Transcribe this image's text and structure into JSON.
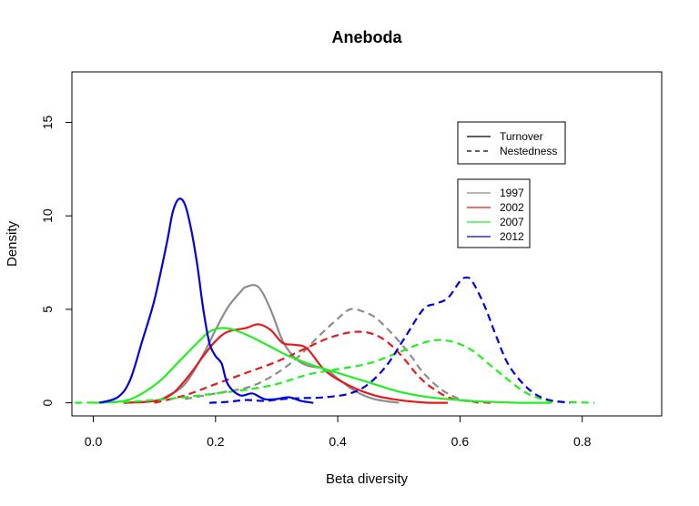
{
  "chart_data": {
    "type": "line",
    "title": "Aneboda",
    "xlabel": "Beta diversity",
    "ylabel": "Density",
    "xlim": [
      -0.035,
      0.93
    ],
    "ylim": [
      -0.7,
      17.7
    ],
    "xticks": [
      0.0,
      0.2,
      0.4,
      0.6,
      0.8
    ],
    "xtick_labels": [
      "0.0",
      "0.2",
      "0.4",
      "0.6",
      "0.8"
    ],
    "yticks": [
      0,
      5,
      10,
      15
    ],
    "ytick_labels": [
      "0",
      "5",
      "10",
      "15"
    ],
    "grid": false,
    "legend_linetype": {
      "position": "top-right",
      "entries": [
        {
          "label": "Turnover",
          "style": "solid",
          "color": "#000000"
        },
        {
          "label": "Nestedness",
          "style": "dashed",
          "color": "#000000"
        }
      ]
    },
    "legend_year": {
      "position": "right",
      "entries": [
        {
          "label": "1997",
          "color": "#8c8c8c"
        },
        {
          "label": "2002",
          "color": "#e31a1c"
        },
        {
          "label": "2007",
          "color": "#22ee22"
        },
        {
          "label": "2012",
          "color": "#0000dd"
        }
      ]
    },
    "series": [
      {
        "group": "1997",
        "component": "Turnover",
        "color": "#8c8c8c",
        "dash": false,
        "x": [
          0.05,
          0.1,
          0.12,
          0.15,
          0.18,
          0.2,
          0.22,
          0.24,
          0.25,
          0.27,
          0.29,
          0.31,
          0.33,
          0.35,
          0.38,
          0.4,
          0.43,
          0.46,
          0.5
        ],
        "y": [
          0.0,
          0.1,
          0.35,
          1.0,
          2.6,
          3.9,
          5.1,
          5.9,
          6.2,
          6.2,
          5.0,
          3.3,
          2.4,
          2.0,
          1.8,
          1.3,
          0.6,
          0.2,
          0.0
        ]
      },
      {
        "group": "1997",
        "component": "Nestedness",
        "color": "#8c8c8c",
        "dash": true,
        "x": [
          0.15,
          0.2,
          0.25,
          0.28,
          0.31,
          0.34,
          0.37,
          0.4,
          0.42,
          0.44,
          0.46,
          0.48,
          0.5,
          0.52,
          0.54,
          0.57,
          0.6,
          0.63
        ],
        "y": [
          0.2,
          0.5,
          0.8,
          1.2,
          1.8,
          2.6,
          3.6,
          4.5,
          5.0,
          4.9,
          4.6,
          4.0,
          3.3,
          2.5,
          1.6,
          0.7,
          0.2,
          0.0
        ]
      },
      {
        "group": "2002",
        "component": "Turnover",
        "color": "#e31a1c",
        "dash": false,
        "x": [
          0.05,
          0.1,
          0.13,
          0.16,
          0.18,
          0.2,
          0.22,
          0.25,
          0.27,
          0.29,
          0.31,
          0.33,
          0.35,
          0.38,
          0.42,
          0.46,
          0.5,
          0.55,
          0.58
        ],
        "y": [
          0.0,
          0.1,
          0.5,
          1.6,
          2.5,
          3.3,
          3.8,
          4.0,
          4.2,
          3.9,
          3.2,
          3.1,
          2.9,
          1.7,
          0.9,
          0.4,
          0.15,
          0.0,
          0.0
        ]
      },
      {
        "group": "2002",
        "component": "Nestedness",
        "color": "#e31a1c",
        "dash": true,
        "x": [
          0.1,
          0.15,
          0.2,
          0.25,
          0.3,
          0.34,
          0.38,
          0.41,
          0.43,
          0.45,
          0.47,
          0.49,
          0.51,
          0.53,
          0.55,
          0.58,
          0.61,
          0.65
        ],
        "y": [
          0.0,
          0.4,
          1.0,
          1.6,
          2.2,
          2.8,
          3.4,
          3.7,
          3.8,
          3.75,
          3.5,
          3.0,
          2.3,
          1.5,
          0.9,
          0.3,
          0.1,
          0.0
        ]
      },
      {
        "group": "2007",
        "component": "Turnover",
        "color": "#22ee22",
        "dash": false,
        "x": [
          0.0,
          0.05,
          0.08,
          0.11,
          0.14,
          0.17,
          0.19,
          0.21,
          0.23,
          0.26,
          0.29,
          0.32,
          0.36,
          0.4,
          0.45,
          0.5,
          0.55,
          0.62,
          0.7,
          0.75
        ],
        "y": [
          0.0,
          0.1,
          0.5,
          1.2,
          2.2,
          3.2,
          3.8,
          4.0,
          3.9,
          3.5,
          3.0,
          2.5,
          2.0,
          1.6,
          1.1,
          0.6,
          0.3,
          0.1,
          0.0,
          0.0
        ]
      },
      {
        "group": "2007",
        "component": "Nestedness",
        "color": "#22ee22",
        "dash": true,
        "x": [
          -0.03,
          0.05,
          0.1,
          0.15,
          0.2,
          0.25,
          0.3,
          0.35,
          0.4,
          0.45,
          0.5,
          0.53,
          0.56,
          0.59,
          0.62,
          0.65,
          0.68,
          0.71,
          0.74,
          0.77,
          0.82
        ],
        "y": [
          0.0,
          0.05,
          0.15,
          0.3,
          0.5,
          0.7,
          1.0,
          1.5,
          1.8,
          2.1,
          2.7,
          3.1,
          3.35,
          3.25,
          2.8,
          2.0,
          1.2,
          0.5,
          0.15,
          0.05,
          0.0
        ]
      },
      {
        "group": "2012",
        "component": "Turnover",
        "color": "#0000dd",
        "dash": false,
        "x": [
          0.01,
          0.04,
          0.06,
          0.08,
          0.1,
          0.12,
          0.13,
          0.14,
          0.15,
          0.16,
          0.17,
          0.18,
          0.19,
          0.2,
          0.21,
          0.22,
          0.24,
          0.26,
          0.28,
          0.3,
          0.32,
          0.34,
          0.36
        ],
        "y": [
          0.0,
          0.3,
          1.2,
          3.3,
          5.5,
          8.5,
          10.2,
          10.9,
          10.6,
          9.3,
          7.4,
          5.0,
          3.2,
          2.5,
          2.1,
          1.0,
          0.4,
          0.5,
          0.2,
          0.2,
          0.3,
          0.1,
          0.0
        ]
      },
      {
        "group": "2012",
        "component": "Nestedness",
        "color": "#0000dd",
        "dash": true,
        "x": [
          0.19,
          0.22,
          0.25,
          0.28,
          0.31,
          0.34,
          0.38,
          0.42,
          0.45,
          0.48,
          0.51,
          0.54,
          0.56,
          0.58,
          0.6,
          0.61,
          0.62,
          0.64,
          0.66,
          0.68,
          0.71,
          0.74,
          0.78
        ],
        "y": [
          0.0,
          0.05,
          0.15,
          0.1,
          0.2,
          0.25,
          0.3,
          0.5,
          1.0,
          2.0,
          3.5,
          5.0,
          5.3,
          5.6,
          6.5,
          6.7,
          6.5,
          5.2,
          3.5,
          2.0,
          0.8,
          0.2,
          0.0
        ]
      }
    ]
  }
}
